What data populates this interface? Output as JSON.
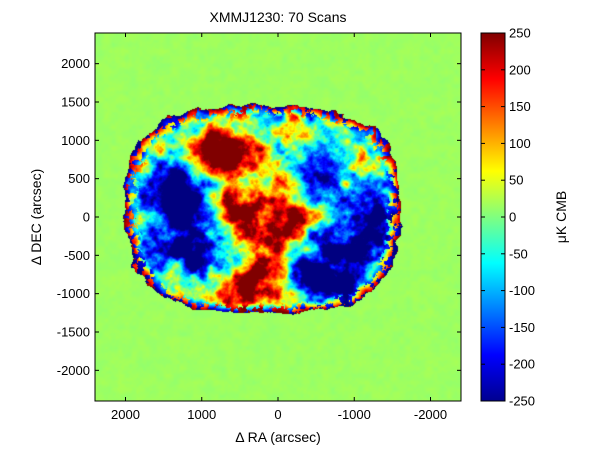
{
  "chart_data": {
    "type": "heatmap",
    "title": "XMMJ1230: 70 Scans",
    "xlabel": "Δ RA (arcsec)",
    "ylabel": "Δ DEC (arcsec)",
    "colorbar_label": "μK CMB",
    "colormap": "jet",
    "xlim": [
      2400,
      -2400
    ],
    "ylim": [
      -2400,
      2400
    ],
    "x_ticks": [
      2000,
      1000,
      0,
      -1000,
      -2000
    ],
    "x_tick_labels": [
      "2000",
      "1000",
      "0",
      "-1000",
      "-2000"
    ],
    "y_ticks": [
      2000,
      1500,
      1000,
      500,
      0,
      -500,
      -1000,
      -1500,
      -2000
    ],
    "y_tick_labels": [
      "2000",
      "1500",
      "1000",
      "500",
      "0",
      "-500",
      "-1000",
      "-1500",
      "-2000"
    ],
    "clim": [
      -250,
      250
    ],
    "colorbar_ticks": [
      250,
      200,
      150,
      100,
      50,
      0,
      -50,
      -100,
      -150,
      -200,
      -250
    ],
    "colorbar_tick_labels": [
      "250",
      "200",
      "150",
      "100",
      "50",
      "0",
      "-50",
      "-100",
      "-150",
      "-200",
      "-250"
    ],
    "background_value": 15,
    "scan_region": {
      "ra_center": 200,
      "dec_center": 100,
      "ra_half_width": 1800,
      "dec_half_width": 1350
    },
    "features": [
      {
        "ra": 1300,
        "dec": 200,
        "ra_sigma": 280,
        "dec_sigma": 330,
        "amplitude": -420
      },
      {
        "ra": -550,
        "dec": -850,
        "ra_sigma": 380,
        "dec_sigma": 250,
        "amplitude": -420
      },
      {
        "ra": 1000,
        "dec": -500,
        "ra_sigma": 330,
        "dec_sigma": 230,
        "amplitude": -300
      },
      {
        "ra": -1100,
        "dec": -150,
        "ra_sigma": 380,
        "dec_sigma": 380,
        "amplitude": -260
      },
      {
        "ra": -500,
        "dec": 600,
        "ra_sigma": 250,
        "dec_sigma": 220,
        "amplitude": -240
      },
      {
        "ra": 250,
        "dec": -900,
        "ra_sigma": 450,
        "dec_sigma": 210,
        "amplitude": 380
      },
      {
        "ra": 750,
        "dec": 850,
        "ra_sigma": 380,
        "dec_sigma": 210,
        "amplitude": 320
      },
      {
        "ra": 150,
        "dec": -150,
        "ra_sigma": 320,
        "dec_sigma": 260,
        "amplitude": 260
      },
      {
        "ra": 500,
        "dec": 100,
        "ra_sigma": 220,
        "dec_sigma": 230,
        "amplitude": 200
      },
      {
        "ra": -300,
        "dec": 200,
        "ra_sigma": 210,
        "dec_sigma": 210,
        "amplitude": 100
      }
    ],
    "edge_rim": {
      "positive_value": 260,
      "negative_value": -260
    }
  }
}
